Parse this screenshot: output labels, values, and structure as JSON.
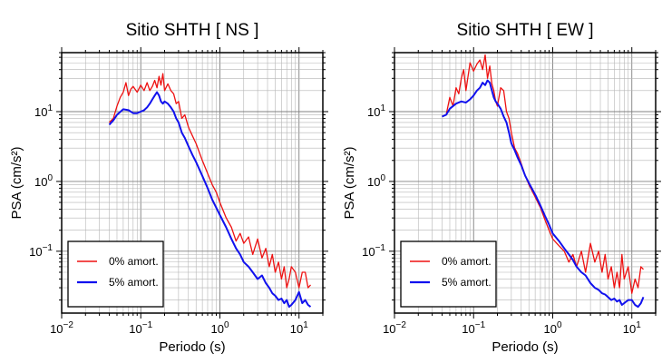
{
  "chart_data": [
    {
      "type": "line",
      "title": "Sitio SHTH [ NS ]",
      "xlabel": "Periodo (s)",
      "ylabel": "PSA (cm/s²)",
      "x_scale": "log",
      "y_scale": "log",
      "xlim": [
        0.01,
        20
      ],
      "ylim": [
        0.013,
        70
      ],
      "grid": true,
      "legend_position": "bottom-left",
      "x_ticks": [
        {
          "base": "10",
          "exp": "−2"
        },
        {
          "base": "10",
          "exp": "−1"
        },
        {
          "base": "10",
          "exp": "0"
        },
        {
          "base": "10",
          "exp": "1"
        }
      ],
      "y_ticks": [
        {
          "base": "10",
          "exp": "−1"
        },
        {
          "base": "10",
          "exp": "0"
        },
        {
          "base": "10",
          "exp": "1"
        }
      ],
      "series": [
        {
          "name": "0% amort.",
          "color": "#ee1111",
          "x": [
            0.04,
            0.045,
            0.05,
            0.055,
            0.06,
            0.065,
            0.07,
            0.075,
            0.08,
            0.09,
            0.1,
            0.11,
            0.12,
            0.13,
            0.14,
            0.15,
            0.16,
            0.17,
            0.18,
            0.19,
            0.2,
            0.22,
            0.24,
            0.26,
            0.28,
            0.3,
            0.33,
            0.36,
            0.4,
            0.45,
            0.5,
            0.6,
            0.7,
            0.8,
            0.9,
            1.0,
            1.2,
            1.4,
            1.6,
            1.8,
            2.0,
            2.3,
            2.6,
            3.0,
            3.4,
            3.8,
            4.2,
            4.6,
            5.0,
            5.5,
            6.0,
            6.5,
            7.0,
            7.5,
            8.0,
            9.0,
            10.0,
            11.0,
            12.0,
            13.0,
            14.0
          ],
          "y": [
            7.0,
            8.0,
            12.0,
            16.0,
            19.0,
            26.0,
            17.0,
            21.0,
            23.0,
            19.0,
            24.0,
            20.0,
            26.0,
            20.0,
            23.0,
            28.0,
            22.0,
            32.0,
            24.0,
            35.0,
            20.0,
            25.0,
            20.0,
            18.0,
            13.0,
            14.0,
            8.0,
            9.0,
            6.0,
            4.5,
            3.5,
            2.0,
            1.3,
            0.9,
            0.7,
            0.5,
            0.3,
            0.22,
            0.14,
            0.18,
            0.13,
            0.16,
            0.09,
            0.15,
            0.08,
            0.11,
            0.06,
            0.09,
            0.05,
            0.07,
            0.04,
            0.06,
            0.03,
            0.04,
            0.06,
            0.05,
            0.03,
            0.05,
            0.05,
            0.03,
            0.033
          ]
        },
        {
          "name": "5% amort.",
          "color": "#1111ee",
          "x": [
            0.04,
            0.045,
            0.05,
            0.06,
            0.07,
            0.08,
            0.09,
            0.1,
            0.11,
            0.12,
            0.13,
            0.14,
            0.15,
            0.16,
            0.17,
            0.18,
            0.19,
            0.2,
            0.22,
            0.24,
            0.26,
            0.28,
            0.3,
            0.33,
            0.36,
            0.4,
            0.45,
            0.5,
            0.6,
            0.7,
            0.8,
            0.9,
            1.0,
            1.2,
            1.4,
            1.6,
            1.8,
            2.0,
            2.3,
            2.6,
            3.0,
            3.4,
            3.8,
            4.2,
            4.6,
            5.0,
            5.5,
            6.0,
            6.5,
            7.0,
            7.5,
            8.0,
            9.0,
            10.0,
            11.0,
            12.0,
            13.0,
            14.0
          ],
          "y": [
            6.5,
            7.5,
            9.0,
            10.8,
            10.5,
            9.5,
            9.5,
            10.0,
            10.5,
            11.5,
            13.0,
            15.0,
            17.0,
            19.0,
            17.0,
            14.0,
            13.0,
            14.0,
            13.0,
            11.5,
            10.0,
            8.0,
            7.0,
            5.0,
            4.2,
            3.2,
            2.4,
            1.9,
            1.2,
            0.8,
            0.55,
            0.42,
            0.33,
            0.22,
            0.15,
            0.11,
            0.09,
            0.07,
            0.06,
            0.05,
            0.04,
            0.045,
            0.035,
            0.03,
            0.025,
            0.023,
            0.02,
            0.021,
            0.018,
            0.02,
            0.016,
            0.017,
            0.02,
            0.026,
            0.018,
            0.02,
            0.017,
            0.016
          ]
        }
      ]
    },
    {
      "type": "line",
      "title": "Sitio SHTH [ EW ]",
      "xlabel": "Periodo (s)",
      "ylabel": "PSA (cm/s²)",
      "x_scale": "log",
      "y_scale": "log",
      "xlim": [
        0.01,
        20
      ],
      "ylim": [
        0.013,
        70
      ],
      "grid": true,
      "legend_position": "bottom-left",
      "x_ticks": [
        {
          "base": "10",
          "exp": "−2"
        },
        {
          "base": "10",
          "exp": "−1"
        },
        {
          "base": "10",
          "exp": "0"
        },
        {
          "base": "10",
          "exp": "1"
        }
      ],
      "y_ticks": [
        {
          "base": "10",
          "exp": "−1"
        },
        {
          "base": "10",
          "exp": "0"
        },
        {
          "base": "10",
          "exp": "1"
        }
      ],
      "series": [
        {
          "name": "0% amort.",
          "color": "#ee1111",
          "x": [
            0.04,
            0.045,
            0.05,
            0.055,
            0.06,
            0.065,
            0.07,
            0.075,
            0.08,
            0.09,
            0.1,
            0.11,
            0.12,
            0.13,
            0.14,
            0.15,
            0.16,
            0.17,
            0.18,
            0.19,
            0.2,
            0.22,
            0.24,
            0.26,
            0.28,
            0.3,
            0.33,
            0.36,
            0.4,
            0.45,
            0.5,
            0.6,
            0.7,
            0.8,
            0.9,
            1.0,
            1.2,
            1.4,
            1.6,
            1.8,
            2.0,
            2.3,
            2.6,
            3.0,
            3.4,
            3.8,
            4.2,
            4.6,
            5.0,
            5.5,
            6.0,
            6.5,
            7.0,
            7.5,
            8.0,
            9.0,
            10.0,
            11.0,
            12.0,
            13.0,
            14.0
          ],
          "y": [
            8.5,
            9.0,
            16.0,
            12.0,
            22.0,
            18.0,
            30.0,
            40.0,
            20.0,
            50.0,
            38.0,
            48.0,
            55.0,
            40.0,
            65.0,
            30.0,
            45.0,
            25.0,
            20.0,
            14.0,
            12.0,
            22.0,
            20.0,
            10.0,
            8.0,
            5.0,
            3.0,
            2.5,
            1.8,
            1.2,
            0.9,
            0.6,
            0.42,
            0.28,
            0.2,
            0.15,
            0.12,
            0.1,
            0.07,
            0.09,
            0.06,
            0.1,
            0.05,
            0.13,
            0.07,
            0.1,
            0.05,
            0.09,
            0.04,
            0.06,
            0.03,
            0.05,
            0.03,
            0.09,
            0.04,
            0.06,
            0.025,
            0.04,
            0.03,
            0.06,
            0.055
          ]
        },
        {
          "name": "5% amort.",
          "color": "#1111ee",
          "x": [
            0.04,
            0.045,
            0.05,
            0.06,
            0.07,
            0.08,
            0.09,
            0.1,
            0.11,
            0.12,
            0.13,
            0.14,
            0.15,
            0.16,
            0.17,
            0.18,
            0.19,
            0.2,
            0.22,
            0.24,
            0.26,
            0.28,
            0.3,
            0.33,
            0.36,
            0.4,
            0.45,
            0.5,
            0.6,
            0.7,
            0.8,
            0.9,
            1.0,
            1.2,
            1.4,
            1.6,
            1.8,
            2.0,
            2.3,
            2.6,
            3.0,
            3.4,
            3.8,
            4.2,
            4.6,
            5.0,
            5.5,
            6.0,
            6.5,
            7.0,
            7.5,
            8.0,
            9.0,
            10.0,
            11.0,
            12.0,
            13.0,
            14.0
          ],
          "y": [
            8.5,
            9.0,
            11.0,
            13.0,
            14.0,
            13.5,
            15.0,
            17.0,
            20.0,
            22.0,
            26.0,
            24.0,
            28.0,
            26.0,
            20.0,
            16.0,
            14.0,
            13.0,
            11.0,
            8.5,
            7.0,
            5.0,
            3.5,
            2.8,
            2.2,
            1.7,
            1.2,
            0.95,
            0.65,
            0.45,
            0.32,
            0.24,
            0.18,
            0.14,
            0.11,
            0.09,
            0.075,
            0.06,
            0.05,
            0.045,
            0.035,
            0.03,
            0.028,
            0.025,
            0.024,
            0.022,
            0.02,
            0.021,
            0.019,
            0.02,
            0.017,
            0.018,
            0.02,
            0.02,
            0.017,
            0.016,
            0.018,
            0.022
          ]
        }
      ]
    }
  ]
}
